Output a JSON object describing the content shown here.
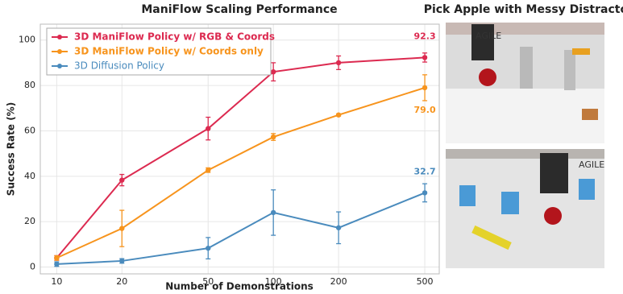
{
  "chart_data": {
    "type": "line",
    "title": "ManiFlow Scaling Performance",
    "x_label": "Number of Demonstrations",
    "y_label": "Success Rate (%)",
    "x": [
      10,
      20,
      50,
      100,
      200,
      500
    ],
    "xscale": "log",
    "xlim": [
      8.4,
      583
    ],
    "xticks": [
      10,
      20,
      50,
      100,
      200,
      500
    ],
    "ylim": [
      -3,
      107
    ],
    "yticks": [
      0,
      20,
      40,
      60,
      80,
      100
    ],
    "grid": true,
    "legend": "upper left",
    "series": [
      {
        "name": "3D ManiFlow Policy w/ RGB & Coords",
        "color": "#dc2a50",
        "values": [
          4,
          38.3,
          61,
          86,
          90,
          92.3
        ],
        "errors": [
          1,
          2.5,
          5,
          4,
          3,
          2
        ],
        "value_labels": [
          null,
          null,
          null,
          null,
          null,
          "92.3"
        ]
      },
      {
        "name": "3D ManiFlow Policy w/ Coords only",
        "color": "#f7941d",
        "values": [
          4,
          17,
          42.7,
          57.3,
          67,
          79
        ],
        "errors": [
          1,
          8,
          1,
          1.5,
          0.5,
          5.7
        ],
        "value_labels": [
          null,
          null,
          null,
          null,
          null,
          "79.0"
        ]
      },
      {
        "name": "3D Diffusion Policy",
        "color": "#4a8bbd",
        "values": [
          1.3,
          2.7,
          8.3,
          24,
          17.3,
          32.7
        ],
        "errors": [
          1,
          1,
          4.7,
          10,
          7,
          4
        ],
        "value_labels": [
          null,
          null,
          null,
          null,
          null,
          "32.7"
        ]
      }
    ]
  },
  "panel": {
    "title": "Pick Apple with Messy Distractors",
    "photos": [
      {
        "label": "AGILE"
      },
      {
        "label": "AGILE"
      }
    ]
  }
}
